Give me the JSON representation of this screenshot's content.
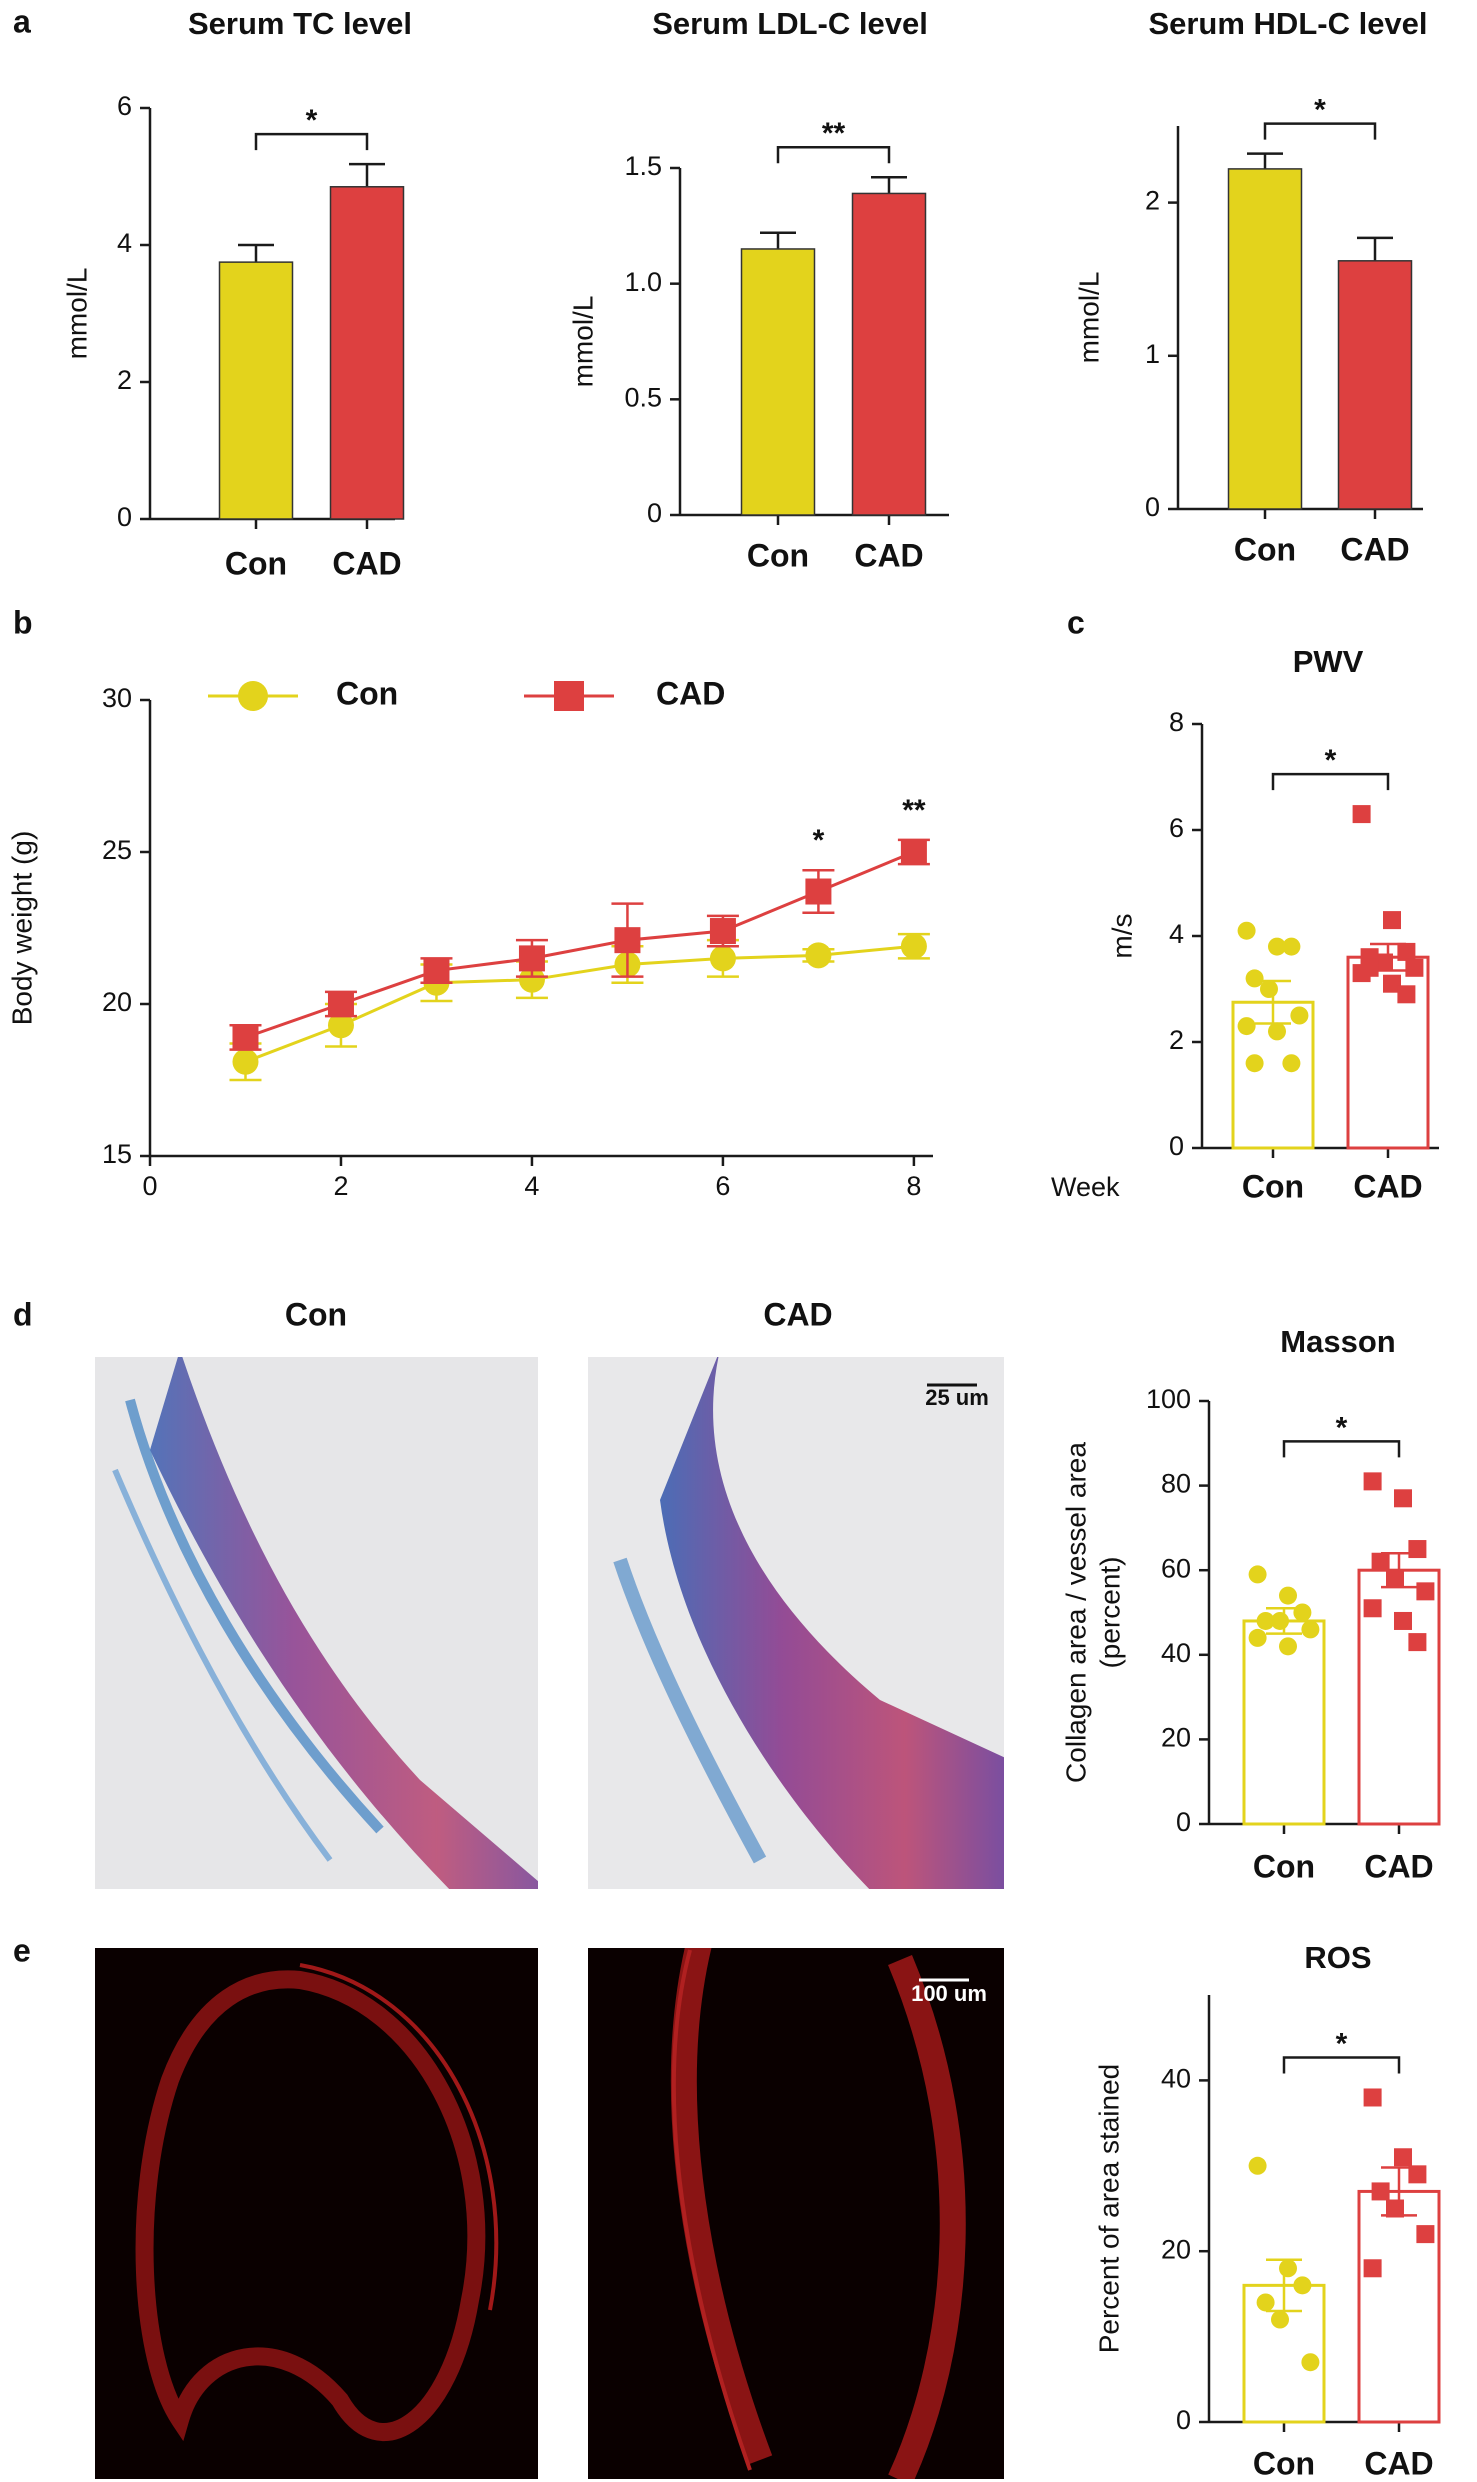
{
  "chart_data": [
    {
      "type": "bar",
      "panel": "a",
      "title": "Serum TC level",
      "ylabel": "mmol/L",
      "categories": [
        "Con",
        "CAD"
      ],
      "values": [
        3.75,
        4.85
      ],
      "errors": [
        0.25,
        0.33
      ],
      "colors": [
        "#e3d31c",
        "#dd4040"
      ],
      "fill": "solid",
      "ylim": [
        0,
        6
      ],
      "yticks": [
        0,
        2,
        4,
        6
      ],
      "significance": "*"
    },
    {
      "type": "bar",
      "title": "Serum LDL-C level",
      "ylabel": "mmol/L",
      "categories": [
        "Con",
        "CAD"
      ],
      "values": [
        1.15,
        1.39
      ],
      "errors": [
        0.07,
        0.07
      ],
      "colors": [
        "#e3d31c",
        "#dd4040"
      ],
      "fill": "solid",
      "ylim": [
        0,
        1.5
      ],
      "yticks": [
        0,
        0.5,
        {
          "value": 1,
          "label": "1.0"
        },
        1.5
      ],
      "significance": "**"
    },
    {
      "type": "bar",
      "title": "Serum  HDL-C level",
      "ylabel": "mmol/L",
      "categories": [
        "Con",
        "CAD"
      ],
      "values": [
        2.22,
        1.62
      ],
      "errors": [
        0.1,
        0.15
      ],
      "colors": [
        "#e3d31c",
        "#dd4040"
      ],
      "fill": "solid",
      "ylim": [
        0,
        2.5
      ],
      "yticks": [
        0,
        1,
        2
      ],
      "significance": "*"
    },
    {
      "type": "line",
      "panel": "b",
      "xlabel": "Week",
      "ylabel": "Body weight (g)",
      "x": [
        1,
        2,
        3,
        4,
        5,
        6,
        7,
        8
      ],
      "series": [
        {
          "name": "Con",
          "color": "#e3d31c",
          "marker": "circle",
          "values": [
            18.1,
            19.3,
            20.7,
            20.8,
            21.3,
            21.5,
            21.6,
            21.9
          ],
          "errors": [
            0.6,
            0.7,
            0.6,
            0.6,
            0.6,
            0.6,
            0.2,
            0.4
          ]
        },
        {
          "name": "CAD",
          "color": "#dd4040",
          "marker": "square",
          "values": [
            18.9,
            20.0,
            21.1,
            21.5,
            22.1,
            22.4,
            23.7,
            25.0
          ],
          "errors": [
            0.4,
            0.4,
            0.4,
            0.6,
            1.2,
            0.5,
            0.7,
            0.4
          ]
        }
      ],
      "xlim": [
        0,
        8.2
      ],
      "xticks": [
        0,
        2,
        4,
        6,
        8
      ],
      "ylim": [
        15,
        30
      ],
      "yticks": [
        15,
        20,
        25,
        30
      ],
      "legend": "top",
      "annotations": [
        {
          "x": 7,
          "text": "*"
        },
        {
          "x": 8,
          "text": "**"
        }
      ]
    },
    {
      "type": "bar",
      "panel": "c",
      "title": "PWV",
      "ylabel": "m/s",
      "categories": [
        "Con",
        "CAD"
      ],
      "values": [
        2.75,
        3.6
      ],
      "errors": [
        0.4,
        0.25
      ],
      "colors": [
        "#e3d31c",
        "#dd4040"
      ],
      "fill": "outline",
      "markers": [
        "circle",
        "square"
      ],
      "points": [
        [
          4.1,
          3.8,
          3.8,
          3.2,
          3.0,
          2.5,
          2.3,
          2.2,
          1.6,
          1.6
        ],
        [
          6.3,
          4.3,
          3.7,
          3.6,
          3.5,
          3.4,
          3.3,
          3.1,
          2.9,
          3.4
        ]
      ],
      "ylim": [
        0,
        8
      ],
      "yticks": [
        0,
        2,
        4,
        6,
        8
      ],
      "significance": "*"
    },
    {
      "type": "bar",
      "title": "Masson",
      "ylabel": [
        "Collagen area / vessel area",
        "(percent)"
      ],
      "categories": [
        "Con",
        "CAD"
      ],
      "values": [
        48,
        60
      ],
      "errors": [
        3,
        4
      ],
      "colors": [
        "#e3d31c",
        "#dd4040"
      ],
      "fill": "outline",
      "markers": [
        "circle",
        "square"
      ],
      "points": [
        [
          59,
          54,
          50,
          48,
          48,
          46,
          44,
          42
        ],
        [
          81,
          77,
          65,
          62,
          58,
          55,
          51,
          48,
          43
        ]
      ],
      "ylim": [
        0,
        100
      ],
      "yticks": [
        0,
        20,
        40,
        60,
        80,
        100
      ],
      "significance": "*"
    },
    {
      "type": "bar",
      "title": "ROS",
      "ylabel": "Percent of area stained",
      "categories": [
        "Con",
        "CAD"
      ],
      "values": [
        16,
        27
      ],
      "errors": [
        3,
        2.8
      ],
      "colors": [
        "#e3d31c",
        "#dd4040"
      ],
      "fill": "outline",
      "markers": [
        "circle",
        "square"
      ],
      "points": [
        [
          30,
          18,
          16,
          14,
          12,
          7
        ],
        [
          38,
          31,
          29,
          27,
          25,
          22,
          18
        ]
      ],
      "ylim": [
        0,
        50
      ],
      "yticks": [
        0,
        20,
        40
      ],
      "significance": "*"
    }
  ],
  "micrographs": [
    {
      "panel": "d",
      "titles": [
        "Con",
        "CAD"
      ],
      "scale_bar": "25 um"
    },
    {
      "panel": "e",
      "scale_bar": "100 um"
    }
  ]
}
